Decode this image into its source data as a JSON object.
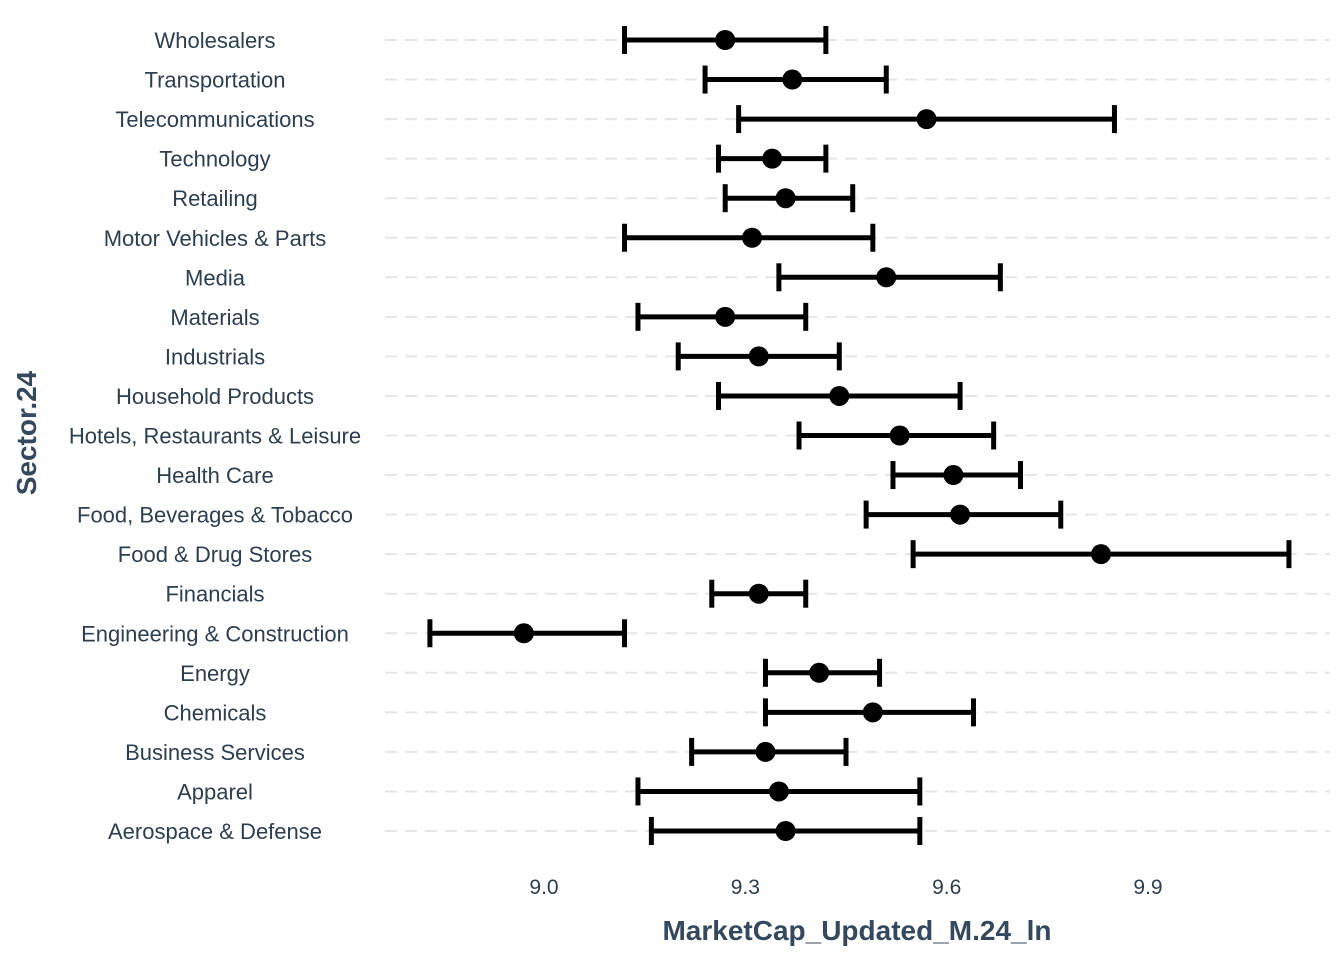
{
  "chart_data": {
    "type": "scatter",
    "subtype": "point-range",
    "xlabel": "MarketCap_Updated_M.24_ln",
    "ylabel": "Sector.24",
    "xlim": [
      8.77,
      10.05
    ],
    "xticks": [
      9.0,
      9.3,
      9.6,
      9.9
    ],
    "xtick_labels": [
      "9.0",
      "9.3",
      "9.6",
      "9.9"
    ],
    "grid": "horizontal dashed",
    "legend": "none",
    "categories": [
      "Wholesalers",
      "Transportation",
      "Telecommunications",
      "Technology",
      "Retailing",
      "Motor Vehicles & Parts",
      "Media",
      "Materials",
      "Industrials",
      "Household Products",
      "Hotels, Restaurants & Leisure",
      "Health Care",
      "Food, Beverages & Tobacco",
      "Food & Drug Stores",
      "Financials",
      "Engineering & Construction",
      "Energy",
      "Chemicals",
      "Business Services",
      "Apparel",
      "Aerospace & Defense"
    ],
    "estimate": [
      9.27,
      9.37,
      9.57,
      9.34,
      9.36,
      9.31,
      9.51,
      9.27,
      9.32,
      9.44,
      9.53,
      9.61,
      9.62,
      9.83,
      9.32,
      8.97,
      9.41,
      9.49,
      9.33,
      9.35,
      9.36
    ],
    "lower": [
      9.12,
      9.24,
      9.29,
      9.26,
      9.27,
      9.12,
      9.35,
      9.14,
      9.2,
      9.26,
      9.38,
      9.52,
      9.48,
      9.55,
      9.25,
      8.83,
      9.33,
      9.33,
      9.22,
      9.14,
      9.16
    ],
    "upper": [
      9.42,
      9.51,
      9.85,
      9.42,
      9.46,
      9.49,
      9.68,
      9.39,
      9.44,
      9.62,
      9.67,
      9.71,
      9.77,
      10.11,
      9.39,
      9.12,
      9.5,
      9.64,
      9.45,
      9.56,
      9.56
    ]
  }
}
